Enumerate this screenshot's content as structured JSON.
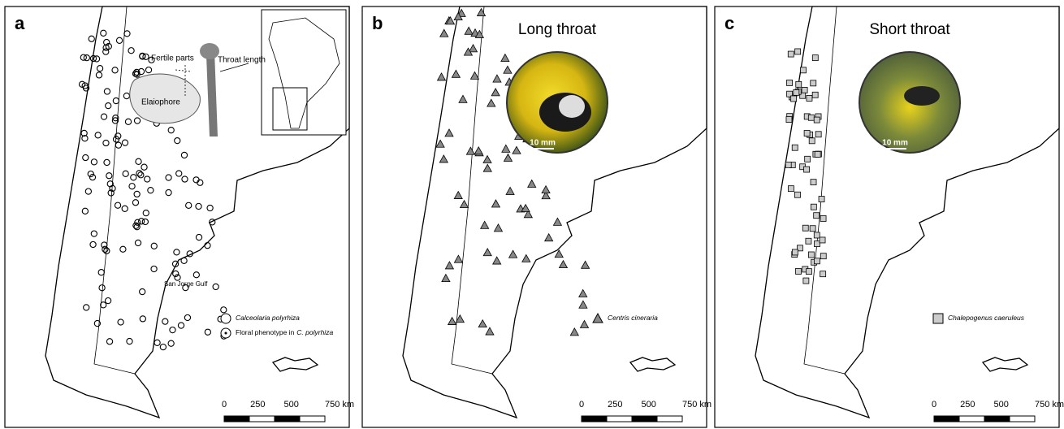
{
  "panels": [
    {
      "label": "a",
      "diagram": {
        "fertile_parts": "Fertile parts",
        "throat_length": "Throat length",
        "elaiophore": "Elaiophore"
      },
      "place": "San Jorge Gulf",
      "legend": [
        {
          "text": "Calceolaria polyrhiza"
        },
        {
          "text": "Floral phenotype in",
          "italic": "C. polyrhiza"
        }
      ],
      "scale_bar": [
        "0",
        "250",
        "500",
        "750 km"
      ]
    },
    {
      "label": "b",
      "photo_title": "Long throat",
      "photo_scale": "10 mm",
      "legend": [
        {
          "text": "Centris cineraria"
        }
      ],
      "scale_bar": [
        "0",
        "250",
        "500",
        "750 km"
      ]
    },
    {
      "label": "c",
      "photo_title": "Short  throat",
      "photo_scale": "10 mm",
      "legend": [
        {
          "text": "Chalepogenus caeruleus"
        }
      ],
      "scale_bar": [
        "0",
        "250",
        "500",
        "750 km"
      ]
    }
  ]
}
